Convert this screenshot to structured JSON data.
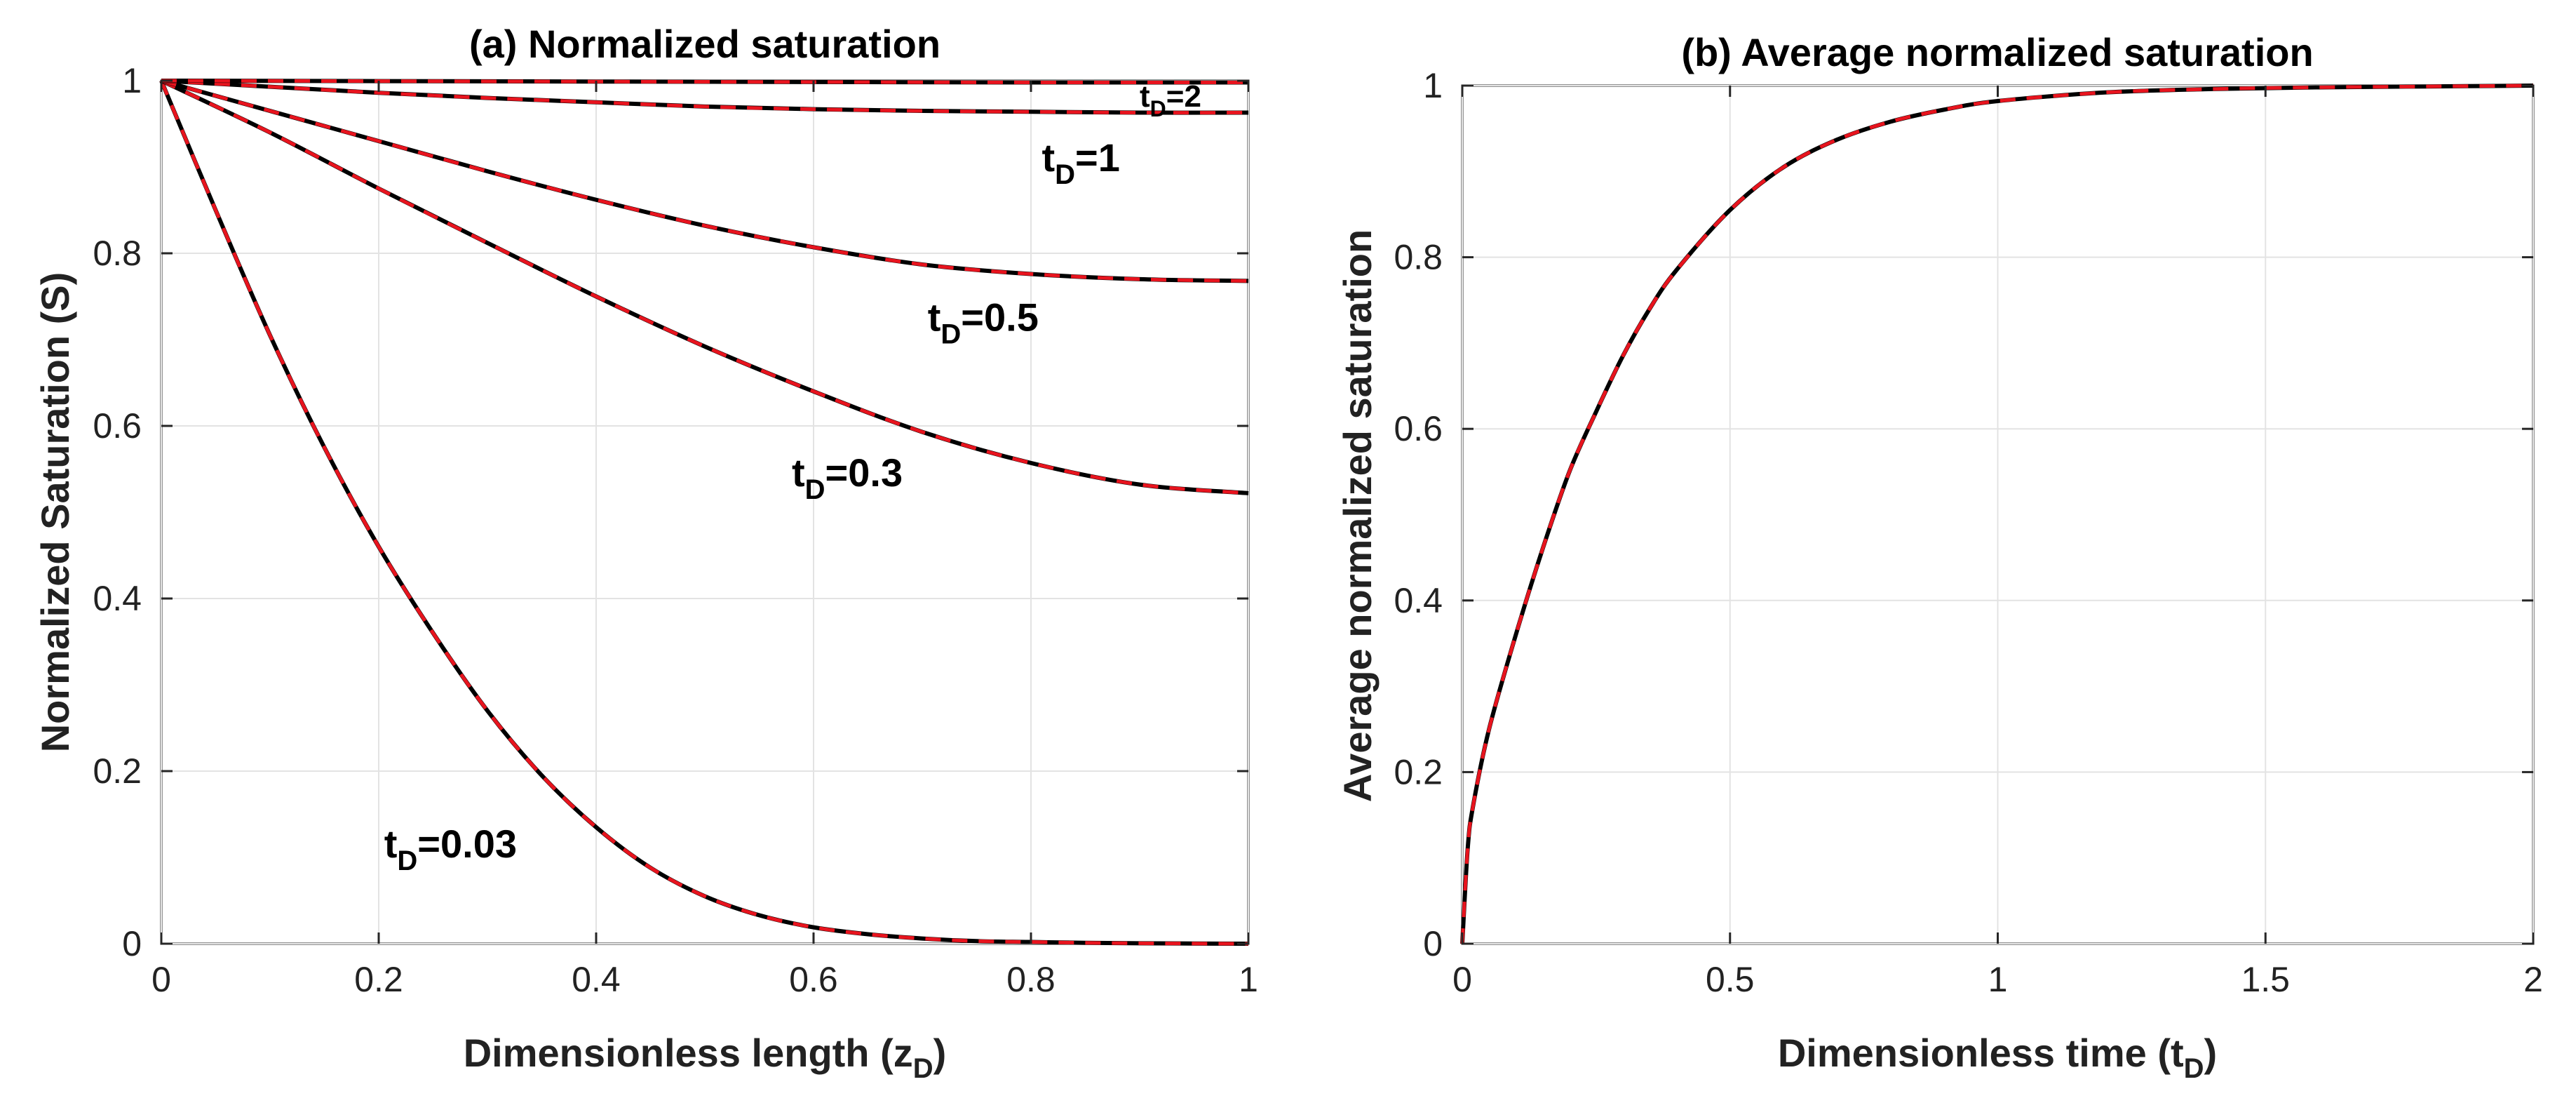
{
  "chart_data": [
    {
      "type": "line",
      "title": "(a) Normalized saturation",
      "xlabel": "Dimensionless length (z",
      "xlabel_sub": "D",
      "xlabel_close": ")",
      "ylabel": "Normalized Saturation (S)",
      "xlim": [
        0,
        1
      ],
      "ylim": [
        0,
        1
      ],
      "xticks": [
        0,
        0.2,
        0.4,
        0.6,
        0.8,
        1
      ],
      "xtick_labels": [
        "0",
        "0.2",
        "0.4",
        "0.6",
        "0.8",
        "1"
      ],
      "yticks": [
        0,
        0.2,
        0.4,
        0.6,
        0.8,
        1
      ],
      "ytick_labels": [
        "0",
        "0.2",
        "0.4",
        "0.6",
        "0.8",
        "1"
      ],
      "grid": true,
      "line_colors": {
        "reference": "#000000",
        "overlay": "#e8141e"
      },
      "series": [
        {
          "name": "t_D=0.03",
          "label_main": "t",
          "label_sub": "D",
          "label_value": "=0.03",
          "label_at": [
            0.205,
            0.1
          ],
          "label_size": "large",
          "x": [
            0,
            0.05,
            0.1,
            0.15,
            0.2,
            0.25,
            0.3,
            0.35,
            0.4,
            0.45,
            0.5,
            0.55,
            0.6,
            0.65,
            0.7,
            0.75,
            0.8,
            0.85,
            0.9,
            0.95,
            1
          ],
          "y": [
            1,
            0.85,
            0.705,
            0.575,
            0.46,
            0.36,
            0.27,
            0.195,
            0.135,
            0.088,
            0.055,
            0.033,
            0.019,
            0.011,
            0.006,
            0.003,
            0.002,
            0.001,
            0.0005,
            0.0002,
            0
          ]
        },
        {
          "name": "t_D=0.3",
          "label_main": "t",
          "label_sub": "D",
          "label_value": "=0.3",
          "label_at": [
            0.58,
            0.53
          ],
          "label_size": "large",
          "x": [
            0,
            0.1,
            0.2,
            0.3,
            0.4,
            0.5,
            0.6,
            0.7,
            0.8,
            0.9,
            1
          ],
          "y": [
            1,
            0.94,
            0.875,
            0.812,
            0.75,
            0.692,
            0.64,
            0.593,
            0.557,
            0.532,
            0.522
          ]
        },
        {
          "name": "t_D=0.5",
          "label_main": "t",
          "label_sub": "D",
          "label_value": "=0.5",
          "label_at": [
            0.705,
            0.71
          ],
          "label_size": "large",
          "x": [
            0,
            0.1,
            0.2,
            0.3,
            0.4,
            0.5,
            0.6,
            0.7,
            0.8,
            0.9,
            1
          ],
          "y": [
            1,
            0.965,
            0.93,
            0.895,
            0.862,
            0.832,
            0.807,
            0.787,
            0.776,
            0.77,
            0.768
          ]
        },
        {
          "name": "t_D=1",
          "label_main": "t",
          "label_sub": "D",
          "label_value": "=1",
          "label_at": [
            0.81,
            0.895
          ],
          "label_size": "large",
          "x": [
            0,
            0.1,
            0.2,
            0.3,
            0.4,
            0.5,
            0.6,
            0.7,
            0.8,
            0.9,
            1
          ],
          "y": [
            1,
            0.993,
            0.986,
            0.98,
            0.975,
            0.97,
            0.967,
            0.965,
            0.964,
            0.963,
            0.963
          ]
        },
        {
          "name": "t_D=2",
          "label_main": "t",
          "label_sub": "D",
          "label_value": "=2",
          "label_at": [
            0.9,
            0.97
          ],
          "label_size": "small",
          "x": [
            0,
            0.2,
            0.4,
            0.6,
            0.8,
            1
          ],
          "y": [
            1,
            0.9995,
            0.999,
            0.9985,
            0.998,
            0.998
          ]
        }
      ]
    },
    {
      "type": "line",
      "title": "(b) Average normalized saturation",
      "xlabel": "Dimensionless time (t",
      "xlabel_sub": "D",
      "xlabel_close": ")",
      "ylabel": "Average normalized saturation",
      "xlim": [
        0,
        2
      ],
      "ylim": [
        0,
        1
      ],
      "xticks": [
        0,
        0.5,
        1,
        1.5,
        2
      ],
      "xtick_labels": [
        "0",
        "0.5",
        "1",
        "1.5",
        "2"
      ],
      "yticks": [
        0,
        0.2,
        0.4,
        0.6,
        0.8,
        1
      ],
      "ytick_labels": [
        "0",
        "0.2",
        "0.4",
        "0.6",
        "0.8",
        "1"
      ],
      "grid": true,
      "line_colors": {
        "reference": "#000000",
        "overlay": "#e8141e"
      },
      "series": [
        {
          "name": "Average normalized saturation",
          "x": [
            0,
            0.01,
            0.02,
            0.05,
            0.1,
            0.15,
            0.2,
            0.25,
            0.3,
            0.35,
            0.4,
            0.5,
            0.6,
            0.7,
            0.8,
            0.9,
            1.0,
            1.2,
            1.4,
            1.6,
            1.8,
            2.0
          ],
          "y": [
            0,
            0.11,
            0.16,
            0.25,
            0.36,
            0.46,
            0.55,
            0.62,
            0.685,
            0.74,
            0.785,
            0.855,
            0.905,
            0.937,
            0.958,
            0.972,
            0.982,
            0.992,
            0.996,
            0.998,
            0.999,
            1.0
          ]
        }
      ]
    }
  ]
}
